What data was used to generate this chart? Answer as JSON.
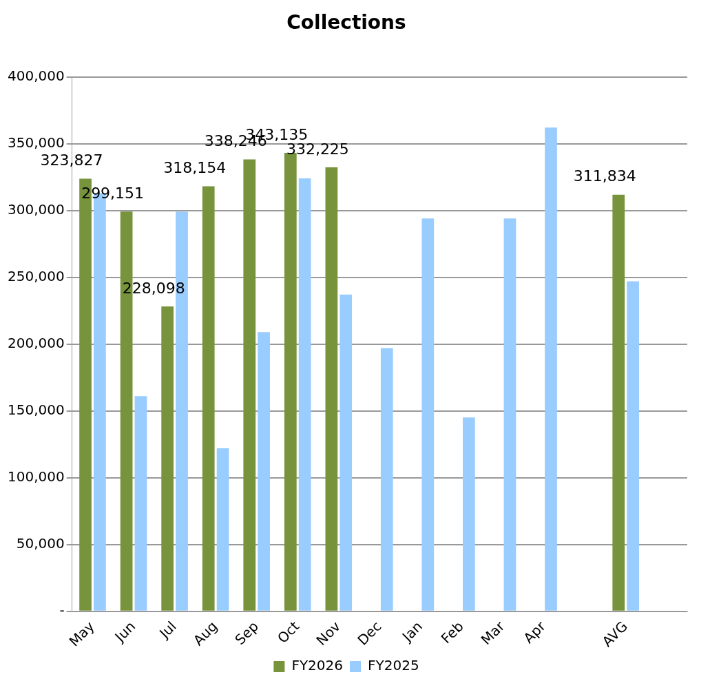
{
  "chart_data": {
    "type": "bar",
    "title": "Collections",
    "categories": [
      "May",
      "Jun",
      "Jul",
      "Aug",
      "Sep",
      "Oct",
      "Nov",
      "Dec",
      "Jan",
      "Feb",
      "Mar",
      "Apr",
      null,
      "AVG",
      null
    ],
    "series": [
      {
        "name": "FY2026",
        "color": "#77933c",
        "values": [
          323827,
          299151,
          228098,
          318154,
          338246,
          343135,
          332225,
          null,
          null,
          null,
          null,
          null,
          null,
          311834,
          null
        ],
        "value_labels": [
          "323,827",
          "299,151",
          "228,098",
          "318,154",
          "338,246",
          "343,135",
          "332,225",
          null,
          null,
          null,
          null,
          null,
          null,
          "311,834",
          null
        ]
      },
      {
        "name": "FY2025",
        "color": "#99ccff",
        "values": [
          313000,
          161000,
          299000,
          122000,
          209000,
          324000,
          237000,
          197000,
          294000,
          145000,
          294000,
          362000,
          null,
          247000,
          null
        ]
      }
    ],
    "ylim": [
      0,
      400000
    ],
    "yticks": [
      {
        "value": 0,
        "label": "-"
      },
      {
        "value": 50000,
        "label": "50,000"
      },
      {
        "value": 100000,
        "label": "100,000"
      },
      {
        "value": 150000,
        "label": "150,000"
      },
      {
        "value": 200000,
        "label": "200,000"
      },
      {
        "value": 250000,
        "label": "250,000"
      },
      {
        "value": 300000,
        "label": "300,000"
      },
      {
        "value": 350000,
        "label": "350,000"
      },
      {
        "value": 400000,
        "label": "400,000"
      }
    ],
    "grid": "y",
    "legend": "bottom"
  }
}
